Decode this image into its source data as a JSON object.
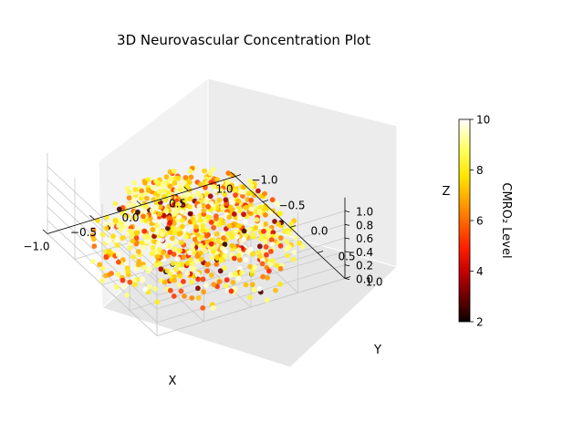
{
  "chart_data": {
    "type": "scatter",
    "projection": "3d",
    "title": "3D Neurovascular Concentration Plot",
    "xlabel": "X",
    "ylabel": "Y",
    "zlabel": "Z",
    "xlim": [
      -1.0,
      1.0
    ],
    "ylim": [
      -1.0,
      1.0
    ],
    "zlim": [
      0.0,
      1.0
    ],
    "xticks": [
      "−1.0",
      "−0.5",
      "0.0",
      "0.5",
      "1.0"
    ],
    "yticks": [
      "−1.0",
      "−0.5",
      "0.0",
      "0.5",
      "1.0"
    ],
    "zticks": [
      "0.0",
      "0.2",
      "0.4",
      "0.6",
      "0.8",
      "1.0"
    ],
    "grid": true,
    "colormap": "hot",
    "colorbar": {
      "label": "CMRO₂ Level",
      "range": [
        2,
        10
      ],
      "ticks": [
        "2",
        "4",
        "6",
        "8",
        "10"
      ]
    },
    "point_count": 900,
    "value_distribution": "points fill the hemisphere x²+y²+z² ≤ 1 with z ≥ 0; most CMRO₂ values lie between 7 and 10, with a minority of darker points between 2 and 6"
  }
}
